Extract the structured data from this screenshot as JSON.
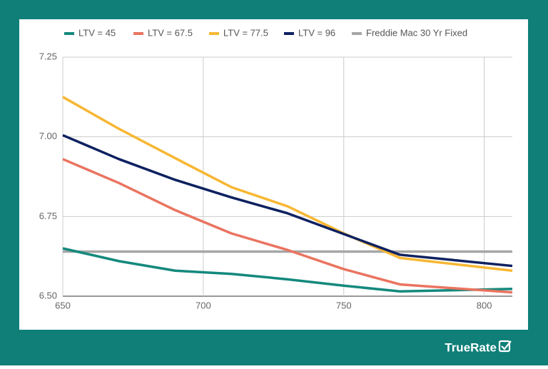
{
  "chart_data": {
    "type": "line",
    "x": [
      650,
      670,
      690,
      710,
      730,
      750,
      770,
      810
    ],
    "series": [
      {
        "name": "LTV = 45",
        "color": "#14897d",
        "values": [
          6.65,
          6.61,
          6.58,
          6.57,
          6.553,
          6.533,
          6.515,
          6.523
        ]
      },
      {
        "name": "LTV = 67.5",
        "color": "#ea7460",
        "values": [
          6.93,
          6.855,
          6.77,
          6.697,
          6.645,
          6.585,
          6.537,
          6.512
        ]
      },
      {
        "name": "LTV = 77.5",
        "color": "#f7b733",
        "values": [
          7.125,
          7.025,
          6.933,
          6.842,
          6.782,
          6.697,
          6.62,
          6.58
        ]
      },
      {
        "name": "LTV = 96",
        "color": "#0e2160",
        "values": [
          7.005,
          6.93,
          6.865,
          6.81,
          6.76,
          6.695,
          6.63,
          6.595
        ]
      },
      {
        "name": "Freddie Mac 30 Yr Fixed",
        "color": "#a6a6a6",
        "values": [
          6.64,
          6.64,
          6.64,
          6.64,
          6.64,
          6.64,
          6.64,
          6.64
        ]
      }
    ],
    "xlim": [
      650,
      810
    ],
    "xticks": [
      650,
      700,
      750,
      800
    ],
    "ylim": [
      6.5,
      7.25
    ],
    "yticks": [
      {
        "value": 6.5,
        "label": "6.50"
      },
      {
        "value": 6.75,
        "label": "6.75"
      },
      {
        "value": 7.0,
        "label": "7.00"
      },
      {
        "value": 7.25,
        "label": "7.25"
      }
    ],
    "grid": true
  },
  "brand": "TrueRate"
}
